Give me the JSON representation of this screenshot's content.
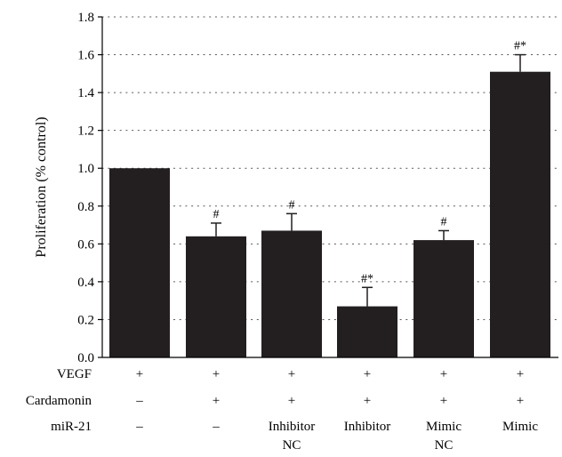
{
  "chart_data": {
    "type": "bar",
    "ylabel": "Proliferation (% control)",
    "ylim": [
      0,
      1.8
    ],
    "yticks": [
      0.0,
      0.2,
      0.4,
      0.6,
      0.8,
      1.0,
      1.2,
      1.4,
      1.6,
      1.8
    ],
    "ytick_labels": [
      "0.0",
      "0.2",
      "0.4",
      "0.6",
      "0.8",
      "1.0",
      "1.2",
      "1.4",
      "1.6",
      "1.8"
    ],
    "grid": "horizontal dotted",
    "bar_color": "#231f20",
    "values": [
      1.0,
      0.64,
      0.67,
      0.27,
      0.62,
      1.51
    ],
    "errors": [
      0.0,
      0.07,
      0.09,
      0.1,
      0.05,
      0.09
    ],
    "significance": [
      "",
      "#",
      "#",
      "#*",
      "#",
      "#*"
    ],
    "condition_rows": [
      {
        "label": "VEGF",
        "values": [
          "+",
          "+",
          "+",
          "+",
          "+",
          "+"
        ]
      },
      {
        "label": "Cardamonin",
        "values": [
          "–",
          "+",
          "+",
          "+",
          "+",
          "+"
        ]
      },
      {
        "label": "miR-21",
        "values": [
          "–",
          "–",
          "Inhibitor\nNC",
          "Inhibitor",
          "Mimic\nNC",
          "Mimic"
        ]
      }
    ]
  }
}
